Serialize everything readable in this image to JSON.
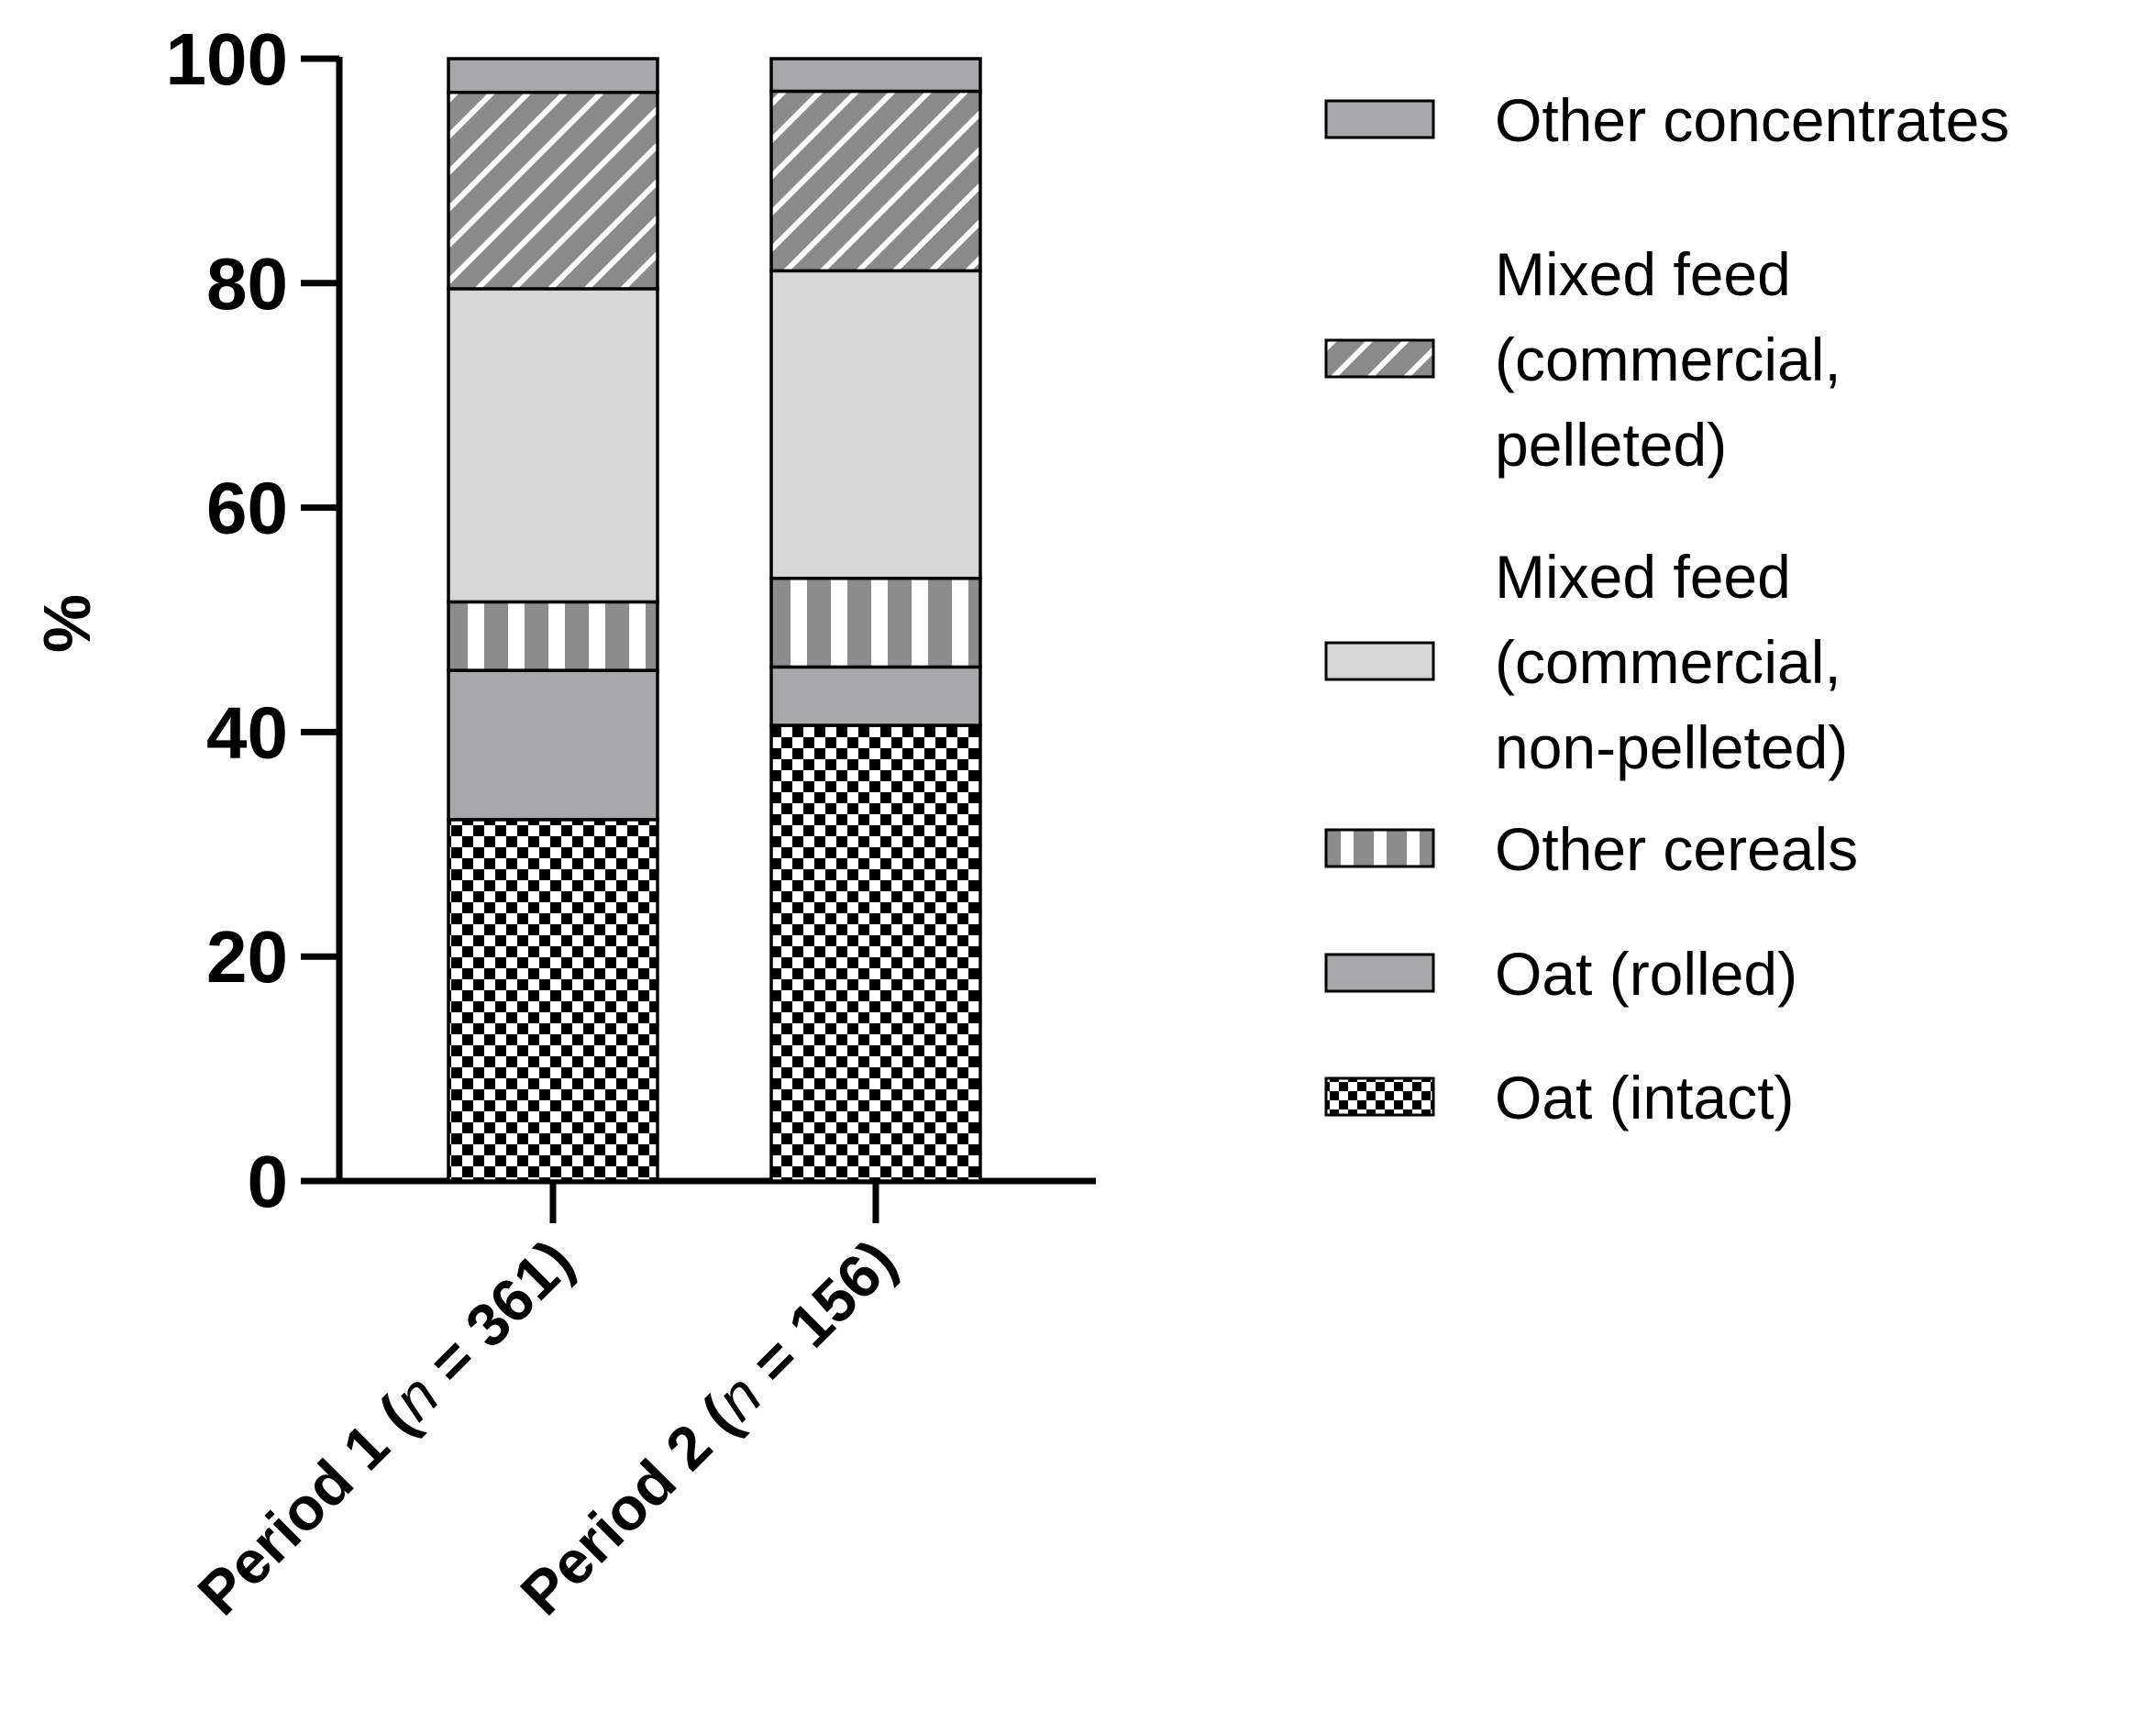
{
  "chart_data": {
    "type": "bar",
    "stacked": true,
    "ylabel": "%",
    "xlabel": "",
    "ylim": [
      0,
      100
    ],
    "yticks": [
      "0",
      "20",
      "40",
      "60",
      "80",
      "100"
    ],
    "categories": [
      {
        "prefix": "Period 1 (",
        "italic": "n",
        "suffix": " = 361)"
      },
      {
        "prefix": "Period 2 (",
        "italic": "n",
        "suffix": " = 156)"
      }
    ],
    "series": [
      {
        "name": "Oat (intact)",
        "pattern": "checker",
        "values": [
          32.2,
          40.6
        ]
      },
      {
        "name": "Oat (rolled)",
        "pattern": "solid-mid",
        "values": [
          13.3,
          5.2
        ]
      },
      {
        "name": "Other cereals",
        "pattern": "vstripes",
        "values": [
          6.1,
          7.9
        ]
      },
      {
        "name": "Mixed feed (commercial, non-pelleted)",
        "legend_lines": [
          "Mixed feed",
          "(commercial,",
          "non-pelleted)"
        ],
        "pattern": "solid-light",
        "values": [
          27.9,
          27.4
        ]
      },
      {
        "name": "Mixed feed (commercial, pelleted)",
        "legend_lines": [
          "Mixed feed",
          "(commercial,",
          "pelleted)"
        ],
        "pattern": "diagonal",
        "values": [
          17.5,
          16.0
        ]
      },
      {
        "name": "Other concentrates",
        "pattern": "solid-mid",
        "values": [
          3.0,
          2.9
        ]
      }
    ],
    "legend_order": [
      5,
      4,
      3,
      2,
      1,
      0
    ],
    "legend_position": "right",
    "grid": false,
    "colors": {
      "solid_mid": "#a8a8aa",
      "solid_light": "#d7d7d7",
      "stripe_dark": "#8c8c8c",
      "diag_base": "#8a8a8a",
      "checker_dark": "#000000",
      "checker_light": "#ffffff"
    }
  }
}
